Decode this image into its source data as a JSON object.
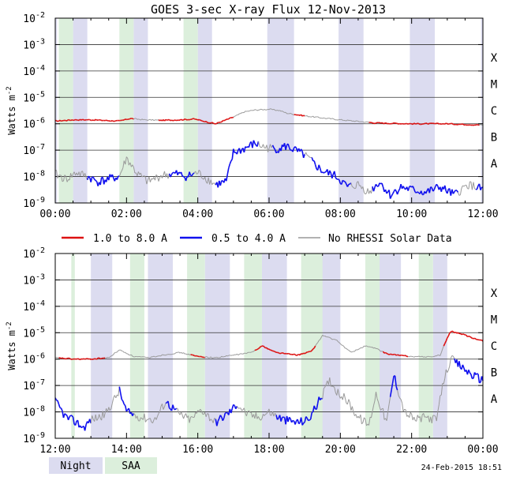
{
  "chart_data": {
    "type": "line",
    "title": "GOES 3-sec X-ray Flux   12-Nov-2013",
    "ylabel": "Watts m",
    "ylabel_sup": "-2",
    "y_tick_labels": [
      {
        "base": "10",
        "exp": "-2",
        "value": -2
      },
      {
        "base": "10",
        "exp": "-3",
        "value": -3
      },
      {
        "base": "10",
        "exp": "-4",
        "value": -4
      },
      {
        "base": "10",
        "exp": "-5",
        "value": -5
      },
      {
        "base": "10",
        "exp": "-6",
        "value": -6
      },
      {
        "base": "10",
        "exp": "-7",
        "value": -7
      },
      {
        "base": "10",
        "exp": "-8",
        "value": -8
      },
      {
        "base": "10",
        "exp": "-9",
        "value": -9
      }
    ],
    "flare_classes": [
      {
        "label": "X",
        "value": -3.5
      },
      {
        "label": "M",
        "value": -4.5
      },
      {
        "label": "C",
        "value": -5.5
      },
      {
        "label": "B",
        "value": -6.5
      },
      {
        "label": "A",
        "value": -7.5
      }
    ],
    "ylim_log10": [
      -9,
      -2
    ],
    "colors": {
      "long": "#dd1111",
      "short": "#1010ee",
      "no_rhessi": "#999999",
      "night": "#dcdcf0",
      "saa": "#dcefdc",
      "grid": "#333333"
    },
    "legend": {
      "long": "1.0 to 8.0 A",
      "short": "0.5 to 4.0 A",
      "no_rhessi": "No RHESSI Solar Data",
      "night": "Night",
      "saa": "SAA"
    },
    "timestamp": "24-Feb-2015 18:51",
    "panels": [
      {
        "xlim_hours": [
          0,
          12
        ],
        "x_tick_labels": [
          "00:00",
          "02:00",
          "04:00",
          "06:00",
          "08:00",
          "10:00",
          "12:00"
        ],
        "night_hours": [
          [
            0.5,
            0.9
          ],
          [
            2.2,
            2.6
          ],
          [
            4.0,
            4.4
          ],
          [
            5.95,
            6.7
          ],
          [
            7.95,
            8.65
          ],
          [
            9.95,
            10.65
          ],
          [
            11.95,
            12.0
          ],
          [
            0.0,
            0.05
          ]
        ],
        "saa_hours": [
          [
            0.1,
            0.5
          ],
          [
            1.8,
            2.2
          ],
          [
            3.6,
            4.0
          ]
        ],
        "long_series": {
          "x": [
            0,
            0.5,
            1.0,
            1.5,
            1.8,
            2.1,
            2.5,
            3.0,
            3.5,
            3.9,
            4.5,
            5.0,
            5.3,
            5.6,
            6.0,
            6.3,
            6.5,
            7.0,
            7.5,
            8.0,
            9.0,
            10.0,
            11.0,
            12.0
          ],
          "y": [
            -5.9,
            -5.85,
            -5.85,
            -5.88,
            -5.9,
            -5.8,
            -5.85,
            -5.87,
            -5.85,
            -5.82,
            -6.0,
            -5.75,
            -5.55,
            -5.48,
            -5.45,
            -5.5,
            -5.6,
            -5.7,
            -5.78,
            -5.85,
            -5.97,
            -6.0,
            -6.0,
            -6.05
          ],
          "red_ranges": [
            [
              0,
              2.2
            ],
            [
              2.9,
              4.5
            ],
            [
              4.5,
              5.0
            ],
            [
              6.7,
              7.0
            ],
            [
              8.8,
              11.9
            ]
          ]
        },
        "short_series": {
          "x": [
            0,
            0.3,
            0.6,
            0.9,
            1.2,
            1.5,
            1.8,
            2.0,
            2.3,
            2.6,
            3.0,
            3.4,
            3.7,
            4.0,
            4.5,
            4.8,
            5.0,
            5.3,
            5.6,
            5.9,
            6.2,
            6.5,
            7.0,
            7.5,
            7.9,
            8.2,
            8.5,
            8.8,
            9.1,
            9.4,
            9.7,
            10.0,
            10.4,
            10.8,
            11.2,
            11.6,
            12.0
          ],
          "y": [
            -7.9,
            -8.1,
            -7.85,
            -8.0,
            -8.2,
            -8.1,
            -8.0,
            -7.3,
            -7.9,
            -8.2,
            -7.95,
            -7.9,
            -8.0,
            -7.85,
            -8.3,
            -8.2,
            -7.1,
            -6.95,
            -6.75,
            -6.9,
            -6.95,
            -6.85,
            -7.2,
            -7.8,
            -8.0,
            -8.4,
            -8.3,
            -8.6,
            -8.2,
            -8.7,
            -8.4,
            -8.5,
            -8.6,
            -8.4,
            -8.7,
            -8.3,
            -8.5
          ],
          "blue_ranges": [
            [
              0.9,
              1.8
            ],
            [
              3.2,
              3.9
            ],
            [
              4.5,
              5.7
            ],
            [
              6.1,
              7.0
            ],
            [
              7.2,
              8.3
            ],
            [
              8.9,
              11.3
            ],
            [
              11.8,
              12.0
            ]
          ]
        }
      },
      {
        "xlim_hours": [
          12,
          24
        ],
        "x_tick_labels": [
          "12:00",
          "14:00",
          "16:00",
          "18:00",
          "20:00",
          "22:00",
          "00:00"
        ],
        "night_hours": [
          [
            13.0,
            13.6
          ],
          [
            14.6,
            15.3
          ],
          [
            16.2,
            16.9
          ],
          [
            17.8,
            18.5
          ],
          [
            19.4,
            20.0
          ],
          [
            21.1,
            21.7
          ],
          [
            22.6,
            23.0
          ]
        ],
        "saa_hours": [
          [
            12.45,
            12.55
          ],
          [
            14.1,
            14.5
          ],
          [
            15.7,
            16.2
          ],
          [
            17.3,
            17.8
          ],
          [
            18.9,
            19.5
          ],
          [
            20.7,
            21.1
          ],
          [
            22.2,
            22.6
          ]
        ],
        "long_series": {
          "x": [
            12,
            12.5,
            13.0,
            13.5,
            13.8,
            14.2,
            14.6,
            15.0,
            15.5,
            16.0,
            16.5,
            17.0,
            17.5,
            17.8,
            18.2,
            18.8,
            19.2,
            19.5,
            19.9,
            20.3,
            20.7,
            21.0,
            21.3,
            21.6,
            22.0,
            22.5,
            22.8,
            23.0,
            23.1,
            23.4,
            23.8,
            24.0
          ],
          "y": [
            -5.95,
            -6.0,
            -6.0,
            -5.95,
            -5.65,
            -5.9,
            -5.95,
            -5.85,
            -5.75,
            -5.9,
            -5.95,
            -5.85,
            -5.75,
            -5.5,
            -5.75,
            -5.85,
            -5.7,
            -5.1,
            -5.3,
            -5.75,
            -5.5,
            -5.6,
            -5.8,
            -5.85,
            -5.9,
            -5.92,
            -5.85,
            -5.2,
            -4.95,
            -5.05,
            -5.25,
            -5.3
          ],
          "red_ranges": [
            [
              12.1,
              13.4
            ],
            [
              15.8,
              16.2
            ],
            [
              17.6,
              19.3
            ],
            [
              21.2,
              21.9
            ],
            [
              22.9,
              24.0
            ]
          ]
        },
        "short_series": {
          "x": [
            12,
            12.3,
            12.6,
            12.8,
            13.0,
            13.4,
            13.8,
            14.0,
            14.4,
            14.8,
            15.1,
            15.5,
            15.8,
            16.1,
            16.5,
            16.9,
            17.1,
            17.4,
            17.7,
            18.0,
            18.4,
            18.8,
            19.1,
            19.4,
            19.7,
            19.9,
            20.2,
            20.5,
            20.8,
            21.0,
            21.3,
            21.5,
            21.8,
            22.1,
            22.4,
            22.7,
            22.9,
            23.1,
            23.4,
            23.7,
            24.0
          ],
          "y": [
            -7.6,
            -8.2,
            -8.4,
            -8.6,
            -8.3,
            -8.1,
            -7.2,
            -8.0,
            -8.2,
            -8.3,
            -7.6,
            -8.1,
            -8.3,
            -7.9,
            -8.4,
            -8.0,
            -7.7,
            -8.1,
            -8.2,
            -8.0,
            -8.3,
            -8.4,
            -8.3,
            -7.6,
            -6.8,
            -7.2,
            -7.6,
            -8.2,
            -8.5,
            -7.3,
            -8.4,
            -6.6,
            -8.0,
            -8.3,
            -8.2,
            -8.3,
            -6.8,
            -6.0,
            -6.3,
            -6.6,
            -6.8
          ],
          "blue_ranges": [
            [
              12.0,
              13.0
            ],
            [
              13.8,
              14.2
            ],
            [
              15.1,
              15.4
            ],
            [
              16.5,
              17.1
            ],
            [
              18.2,
              19.5
            ],
            [
              21.4,
              21.6
            ],
            [
              23.2,
              24.0
            ]
          ]
        }
      }
    ]
  }
}
